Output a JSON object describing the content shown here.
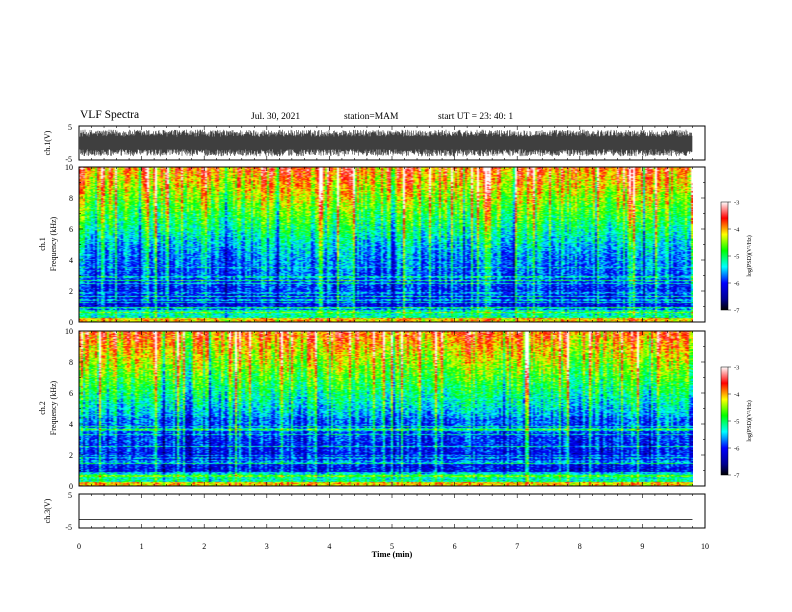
{
  "header": {
    "title": "VLF Spectra",
    "date": "Jul. 30, 2021",
    "station": "station=MAM",
    "start": "start UT =  23: 40: 1"
  },
  "chart_data": [
    {
      "type": "line",
      "panel": "ch1-waveform",
      "ylabel": "ch.1(V)",
      "yticks": [
        "5",
        "-5"
      ],
      "ylim": [
        -5,
        5
      ],
      "xlim": [
        0,
        10
      ],
      "description_values": "dense noisy waveform, amplitude roughly -4 to +4 V, over 0 to 9.8 min"
    },
    {
      "type": "heatmap",
      "panel": "ch1-spectrogram",
      "ylabel": "ch.1 Frequency (kHz)",
      "yticks": [
        "0",
        "2",
        "4",
        "6",
        "8",
        "10"
      ],
      "ylim": [
        0,
        10
      ],
      "xlim": [
        0,
        10
      ],
      "data_xmax": 9.8,
      "colorbar": {
        "label": "log(PSD)(V²/Hz)",
        "ticks": [
          "-3",
          "-4",
          "-5",
          "-6",
          "-7"
        ],
        "range": [
          -7,
          -3
        ]
      }
    },
    {
      "type": "heatmap",
      "panel": "ch2-spectrogram",
      "ylabel": "ch.2 Frequency (kHz)",
      "yticks": [
        "0",
        "2",
        "4",
        "6",
        "8",
        "10"
      ],
      "ylim": [
        0,
        10
      ],
      "xlim": [
        0,
        10
      ],
      "data_xmax": 9.8,
      "colorbar": {
        "label": "log(PSD)(V²/Hz)",
        "ticks": [
          "-3",
          "-4",
          "-5",
          "-6",
          "-7"
        ],
        "range": [
          -7,
          -3
        ]
      }
    },
    {
      "type": "line",
      "panel": "ch3-waveform",
      "ylabel": "ch.3(V)",
      "yticks": [
        "5",
        "-5"
      ],
      "ylim": [
        -5,
        5
      ],
      "xlim": [
        0,
        10
      ],
      "x": [
        0,
        9.8
      ],
      "y": [
        -2.5,
        -2.5
      ]
    }
  ],
  "xaxis": {
    "label": "Time (min)",
    "ticks": [
      "0",
      "1",
      "2",
      "3",
      "4",
      "5",
      "6",
      "7",
      "8",
      "9",
      "10"
    ]
  },
  "colors": {
    "jet": [
      "#000080",
      "#0000ff",
      "#00ffff",
      "#00ff00",
      "#ffff00",
      "#ff0000",
      "#ffffff"
    ]
  }
}
